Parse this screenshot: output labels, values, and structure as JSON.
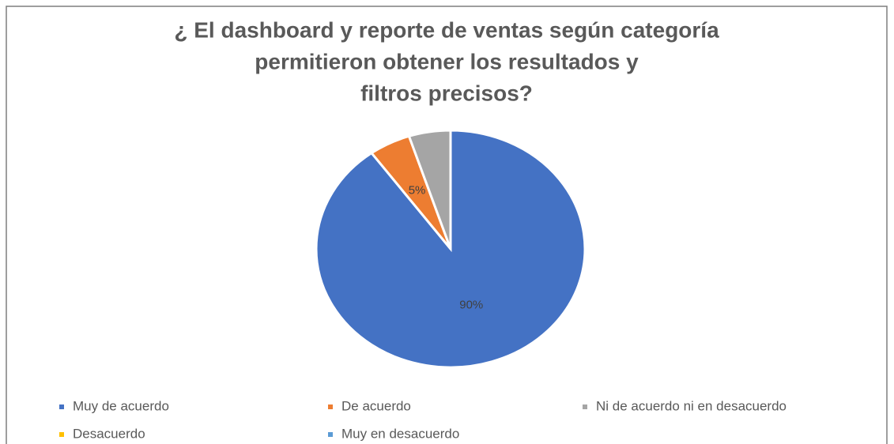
{
  "chart_data": {
    "type": "pie",
    "title": [
      "¿ El dashboard y reporte de ventas según categoría",
      "permitieron obtener los resultados y",
      "filtros precisos?"
    ],
    "categories": [
      "Muy de acuerdo",
      "De acuerdo",
      "Ni de acuerdo ni en desacuerdo",
      "Desacuerdo",
      "Muy en desacuerdo"
    ],
    "values": [
      90,
      5,
      5,
      0,
      0
    ],
    "value_labels": [
      "90%",
      "5%",
      null,
      null,
      null
    ],
    "colors": [
      "#4472c4",
      "#ed7d31",
      "#a5a5a5",
      "#ffc000",
      "#5b9bd5"
    ]
  }
}
